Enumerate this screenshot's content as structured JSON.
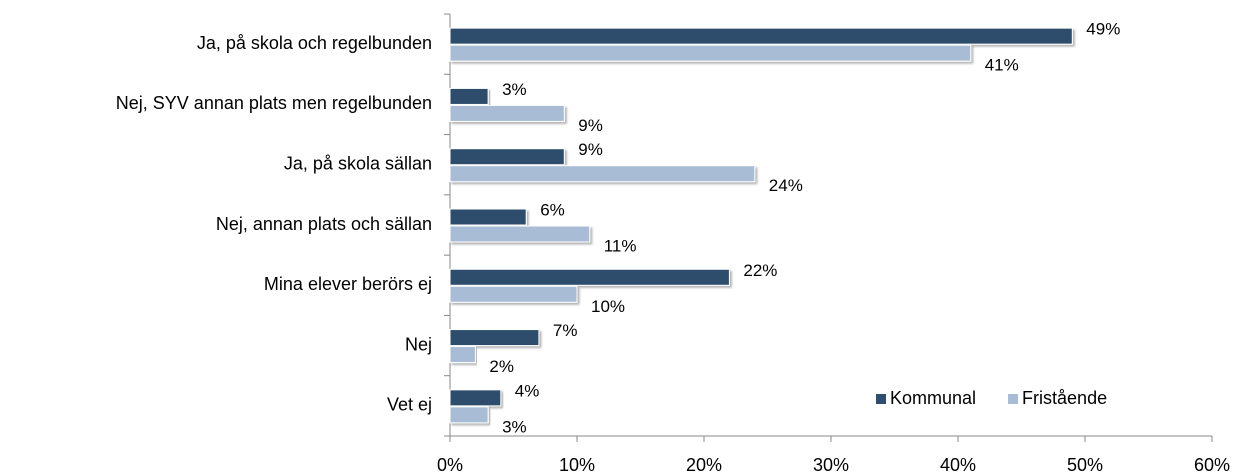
{
  "chart_data": {
    "type": "hbar",
    "categories": [
      "Ja, på skola och regelbunden",
      "Nej, SYV annan plats men regelbunden",
      "Ja, på skola sällan",
      "Nej, annan plats och sällan",
      "Mina elever berörs ej",
      "Nej",
      "Vet ej"
    ],
    "series": [
      {
        "name": "Kommunal",
        "color": "#2f4d6c",
        "values": [
          49,
          3,
          9,
          6,
          22,
          7,
          4
        ],
        "value_labels": [
          "49%",
          "3%",
          "9%",
          "6%",
          "22%",
          "7%",
          "4%"
        ]
      },
      {
        "name": "Fristående",
        "color": "#a8bcd6",
        "values": [
          41,
          9,
          24,
          11,
          10,
          2,
          3
        ],
        "value_labels": [
          "41%",
          "9%",
          "24%",
          "11%",
          "10%",
          "2%",
          "3%"
        ]
      }
    ],
    "xlim": [
      0,
      60
    ],
    "xticks": [
      {
        "value": 0,
        "label": "0%"
      },
      {
        "value": 10,
        "label": "10%"
      },
      {
        "value": 20,
        "label": "20%"
      },
      {
        "value": 30,
        "label": "30%"
      },
      {
        "value": 40,
        "label": "40%"
      },
      {
        "value": 50,
        "label": "50%"
      },
      {
        "value": 60,
        "label": "60%"
      }
    ],
    "legend": "lower right"
  }
}
